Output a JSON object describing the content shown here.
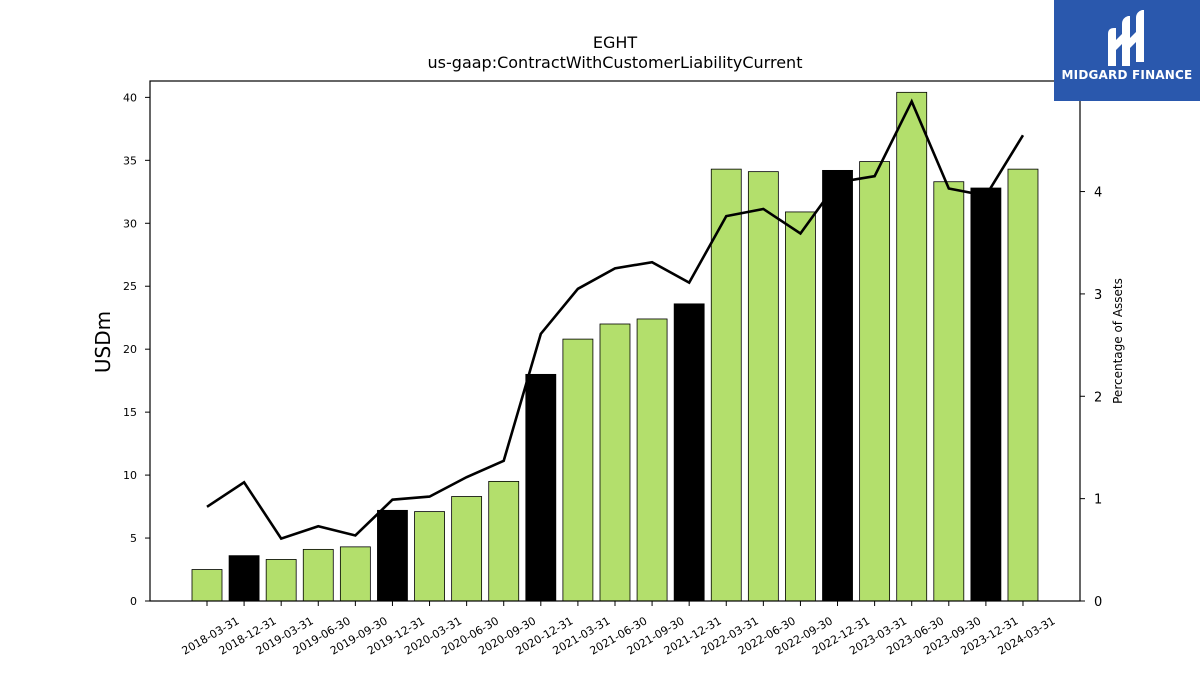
{
  "chart_data": {
    "type": "bar",
    "title": "EGHT",
    "subtitle": "us-gaap:ContractWithCustomerLiabilityCurrent",
    "ylabel": "USDm",
    "y2label": "Percentage of Assets",
    "ylim": [
      0,
      41.3
    ],
    "y2lim": [
      0,
      5.08
    ],
    "yticks": [
      0,
      5,
      10,
      15,
      20,
      25,
      30,
      35,
      40
    ],
    "y2ticks": [
      0,
      1,
      2,
      3,
      4
    ],
    "categories": [
      "2018-03-31",
      "2018-12-31",
      "2019-03-31",
      "2019-06-30",
      "2019-09-30",
      "2019-12-31",
      "2020-03-31",
      "2020-06-30",
      "2020-09-30",
      "2020-12-31",
      "2021-03-31",
      "2021-06-30",
      "2021-09-30",
      "2021-12-31",
      "2022-03-31",
      "2022-06-30",
      "2022-09-30",
      "2022-12-31",
      "2023-03-31",
      "2023-06-30",
      "2023-09-30",
      "2023-12-31",
      "2024-03-31"
    ],
    "series": [
      {
        "type": "bar",
        "axis": "left",
        "values": [
          2.5,
          3.6,
          3.3,
          4.1,
          4.3,
          7.2,
          7.1,
          8.3,
          9.5,
          18.0,
          20.8,
          22.0,
          22.4,
          23.6,
          34.3,
          34.1,
          30.9,
          34.2,
          34.9,
          40.4,
          33.3,
          32.8,
          34.3
        ],
        "colors": [
          "#b3df6c",
          "#000000",
          "#b3df6c",
          "#b3df6c",
          "#b3df6c",
          "#000000",
          "#b3df6c",
          "#b3df6c",
          "#b3df6c",
          "#000000",
          "#b3df6c",
          "#b3df6c",
          "#b3df6c",
          "#000000",
          "#b3df6c",
          "#b3df6c",
          "#b3df6c",
          "#000000",
          "#b3df6c",
          "#b3df6c",
          "#b3df6c",
          "#000000",
          "#b3df6c"
        ]
      },
      {
        "type": "line",
        "axis": "right",
        "color": "#000000",
        "values": [
          0.92,
          1.16,
          0.61,
          0.73,
          0.64,
          0.99,
          1.02,
          1.21,
          1.37,
          2.61,
          3.05,
          3.25,
          3.31,
          3.11,
          3.76,
          3.83,
          3.59,
          4.09,
          4.15,
          4.88,
          4.03,
          3.96,
          4.55
        ]
      }
    ],
    "grid": false,
    "legend": "none"
  },
  "logo": {
    "text": "MIDGARD FINANCE",
    "color": "#2a58ad"
  }
}
